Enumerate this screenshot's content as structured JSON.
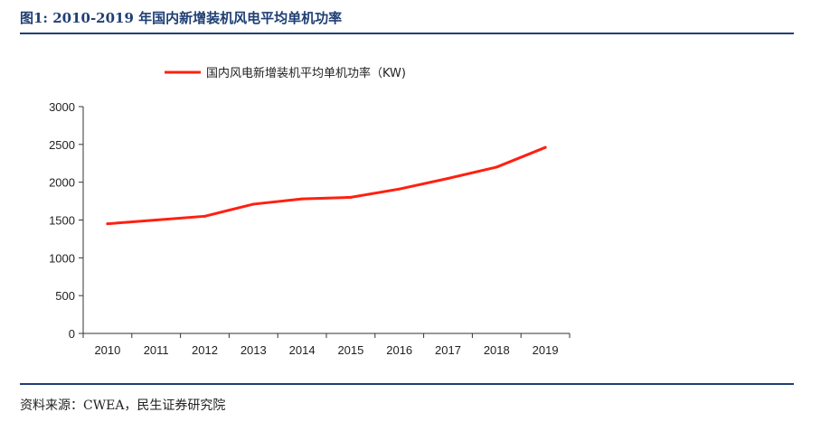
{
  "figure": {
    "title": "图1: 2010-2019 年国内新增装机风电平均单机功率",
    "source": "资料来源：CWEA，民生证券研究院"
  },
  "chart_data": {
    "type": "line",
    "x": [
      "2010",
      "2011",
      "2012",
      "2013",
      "2014",
      "2015",
      "2016",
      "2017",
      "2018",
      "2019"
    ],
    "series": [
      {
        "name": "国内风电新增装机平均单机功率（KW)",
        "color": "#ff2010",
        "values": [
          1450,
          1500,
          1550,
          1710,
          1780,
          1800,
          1910,
          2050,
          2200,
          2460
        ]
      }
    ],
    "yticks": [
      0,
      500,
      1000,
      1500,
      2000,
      2500,
      3000
    ],
    "ylim": [
      0,
      3000
    ],
    "grid": false,
    "legend_position": "top"
  }
}
